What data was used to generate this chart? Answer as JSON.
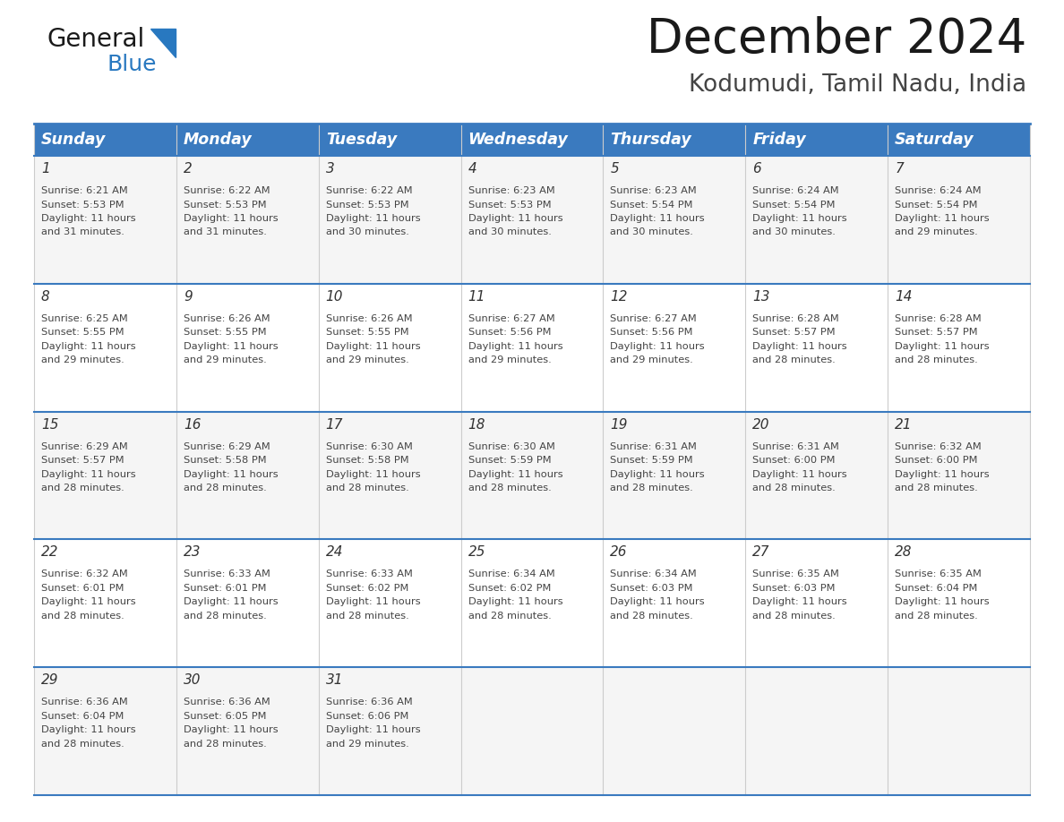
{
  "title": "December 2024",
  "subtitle": "Kodumudi, Tamil Nadu, India",
  "header_color": "#3a7abf",
  "header_text_color": "#ffffff",
  "border_color": "#3a7abf",
  "days_of_week": [
    "Sunday",
    "Monday",
    "Tuesday",
    "Wednesday",
    "Thursday",
    "Friday",
    "Saturday"
  ],
  "calendar_data": [
    [
      {
        "day": "1",
        "sunrise": "6:21 AM",
        "sunset": "5:53 PM",
        "daylight": "11 hours and 31 minutes."
      },
      {
        "day": "2",
        "sunrise": "6:22 AM",
        "sunset": "5:53 PM",
        "daylight": "11 hours and 31 minutes."
      },
      {
        "day": "3",
        "sunrise": "6:22 AM",
        "sunset": "5:53 PM",
        "daylight": "11 hours and 30 minutes."
      },
      {
        "day": "4",
        "sunrise": "6:23 AM",
        "sunset": "5:53 PM",
        "daylight": "11 hours and 30 minutes."
      },
      {
        "day": "5",
        "sunrise": "6:23 AM",
        "sunset": "5:54 PM",
        "daylight": "11 hours and 30 minutes."
      },
      {
        "day": "6",
        "sunrise": "6:24 AM",
        "sunset": "5:54 PM",
        "daylight": "11 hours and 30 minutes."
      },
      {
        "day": "7",
        "sunrise": "6:24 AM",
        "sunset": "5:54 PM",
        "daylight": "11 hours and 29 minutes."
      }
    ],
    [
      {
        "day": "8",
        "sunrise": "6:25 AM",
        "sunset": "5:55 PM",
        "daylight": "11 hours and 29 minutes."
      },
      {
        "day": "9",
        "sunrise": "6:26 AM",
        "sunset": "5:55 PM",
        "daylight": "11 hours and 29 minutes."
      },
      {
        "day": "10",
        "sunrise": "6:26 AM",
        "sunset": "5:55 PM",
        "daylight": "11 hours and 29 minutes."
      },
      {
        "day": "11",
        "sunrise": "6:27 AM",
        "sunset": "5:56 PM",
        "daylight": "11 hours and 29 minutes."
      },
      {
        "day": "12",
        "sunrise": "6:27 AM",
        "sunset": "5:56 PM",
        "daylight": "11 hours and 29 minutes."
      },
      {
        "day": "13",
        "sunrise": "6:28 AM",
        "sunset": "5:57 PM",
        "daylight": "11 hours and 28 minutes."
      },
      {
        "day": "14",
        "sunrise": "6:28 AM",
        "sunset": "5:57 PM",
        "daylight": "11 hours and 28 minutes."
      }
    ],
    [
      {
        "day": "15",
        "sunrise": "6:29 AM",
        "sunset": "5:57 PM",
        "daylight": "11 hours and 28 minutes."
      },
      {
        "day": "16",
        "sunrise": "6:29 AM",
        "sunset": "5:58 PM",
        "daylight": "11 hours and 28 minutes."
      },
      {
        "day": "17",
        "sunrise": "6:30 AM",
        "sunset": "5:58 PM",
        "daylight": "11 hours and 28 minutes."
      },
      {
        "day": "18",
        "sunrise": "6:30 AM",
        "sunset": "5:59 PM",
        "daylight": "11 hours and 28 minutes."
      },
      {
        "day": "19",
        "sunrise": "6:31 AM",
        "sunset": "5:59 PM",
        "daylight": "11 hours and 28 minutes."
      },
      {
        "day": "20",
        "sunrise": "6:31 AM",
        "sunset": "6:00 PM",
        "daylight": "11 hours and 28 minutes."
      },
      {
        "day": "21",
        "sunrise": "6:32 AM",
        "sunset": "6:00 PM",
        "daylight": "11 hours and 28 minutes."
      }
    ],
    [
      {
        "day": "22",
        "sunrise": "6:32 AM",
        "sunset": "6:01 PM",
        "daylight": "11 hours and 28 minutes."
      },
      {
        "day": "23",
        "sunrise": "6:33 AM",
        "sunset": "6:01 PM",
        "daylight": "11 hours and 28 minutes."
      },
      {
        "day": "24",
        "sunrise": "6:33 AM",
        "sunset": "6:02 PM",
        "daylight": "11 hours and 28 minutes."
      },
      {
        "day": "25",
        "sunrise": "6:34 AM",
        "sunset": "6:02 PM",
        "daylight": "11 hours and 28 minutes."
      },
      {
        "day": "26",
        "sunrise": "6:34 AM",
        "sunset": "6:03 PM",
        "daylight": "11 hours and 28 minutes."
      },
      {
        "day": "27",
        "sunrise": "6:35 AM",
        "sunset": "6:03 PM",
        "daylight": "11 hours and 28 minutes."
      },
      {
        "day": "28",
        "sunrise": "6:35 AM",
        "sunset": "6:04 PM",
        "daylight": "11 hours and 28 minutes."
      }
    ],
    [
      {
        "day": "29",
        "sunrise": "6:36 AM",
        "sunset": "6:04 PM",
        "daylight": "11 hours and 28 minutes."
      },
      {
        "day": "30",
        "sunrise": "6:36 AM",
        "sunset": "6:05 PM",
        "daylight": "11 hours and 28 minutes."
      },
      {
        "day": "31",
        "sunrise": "6:36 AM",
        "sunset": "6:06 PM",
        "daylight": "11 hours and 29 minutes."
      },
      null,
      null,
      null,
      null
    ]
  ],
  "background_color": "#ffffff",
  "text_color": "#444444",
  "title_fontsize": 38,
  "subtitle_fontsize": 19,
  "header_fontsize": 12.5,
  "day_num_fontsize": 11,
  "cell_text_fontsize": 8.2,
  "logo_general_color": "#1a1a1a",
  "logo_blue_color": "#2878c0",
  "logo_triangle_color": "#2878c0"
}
